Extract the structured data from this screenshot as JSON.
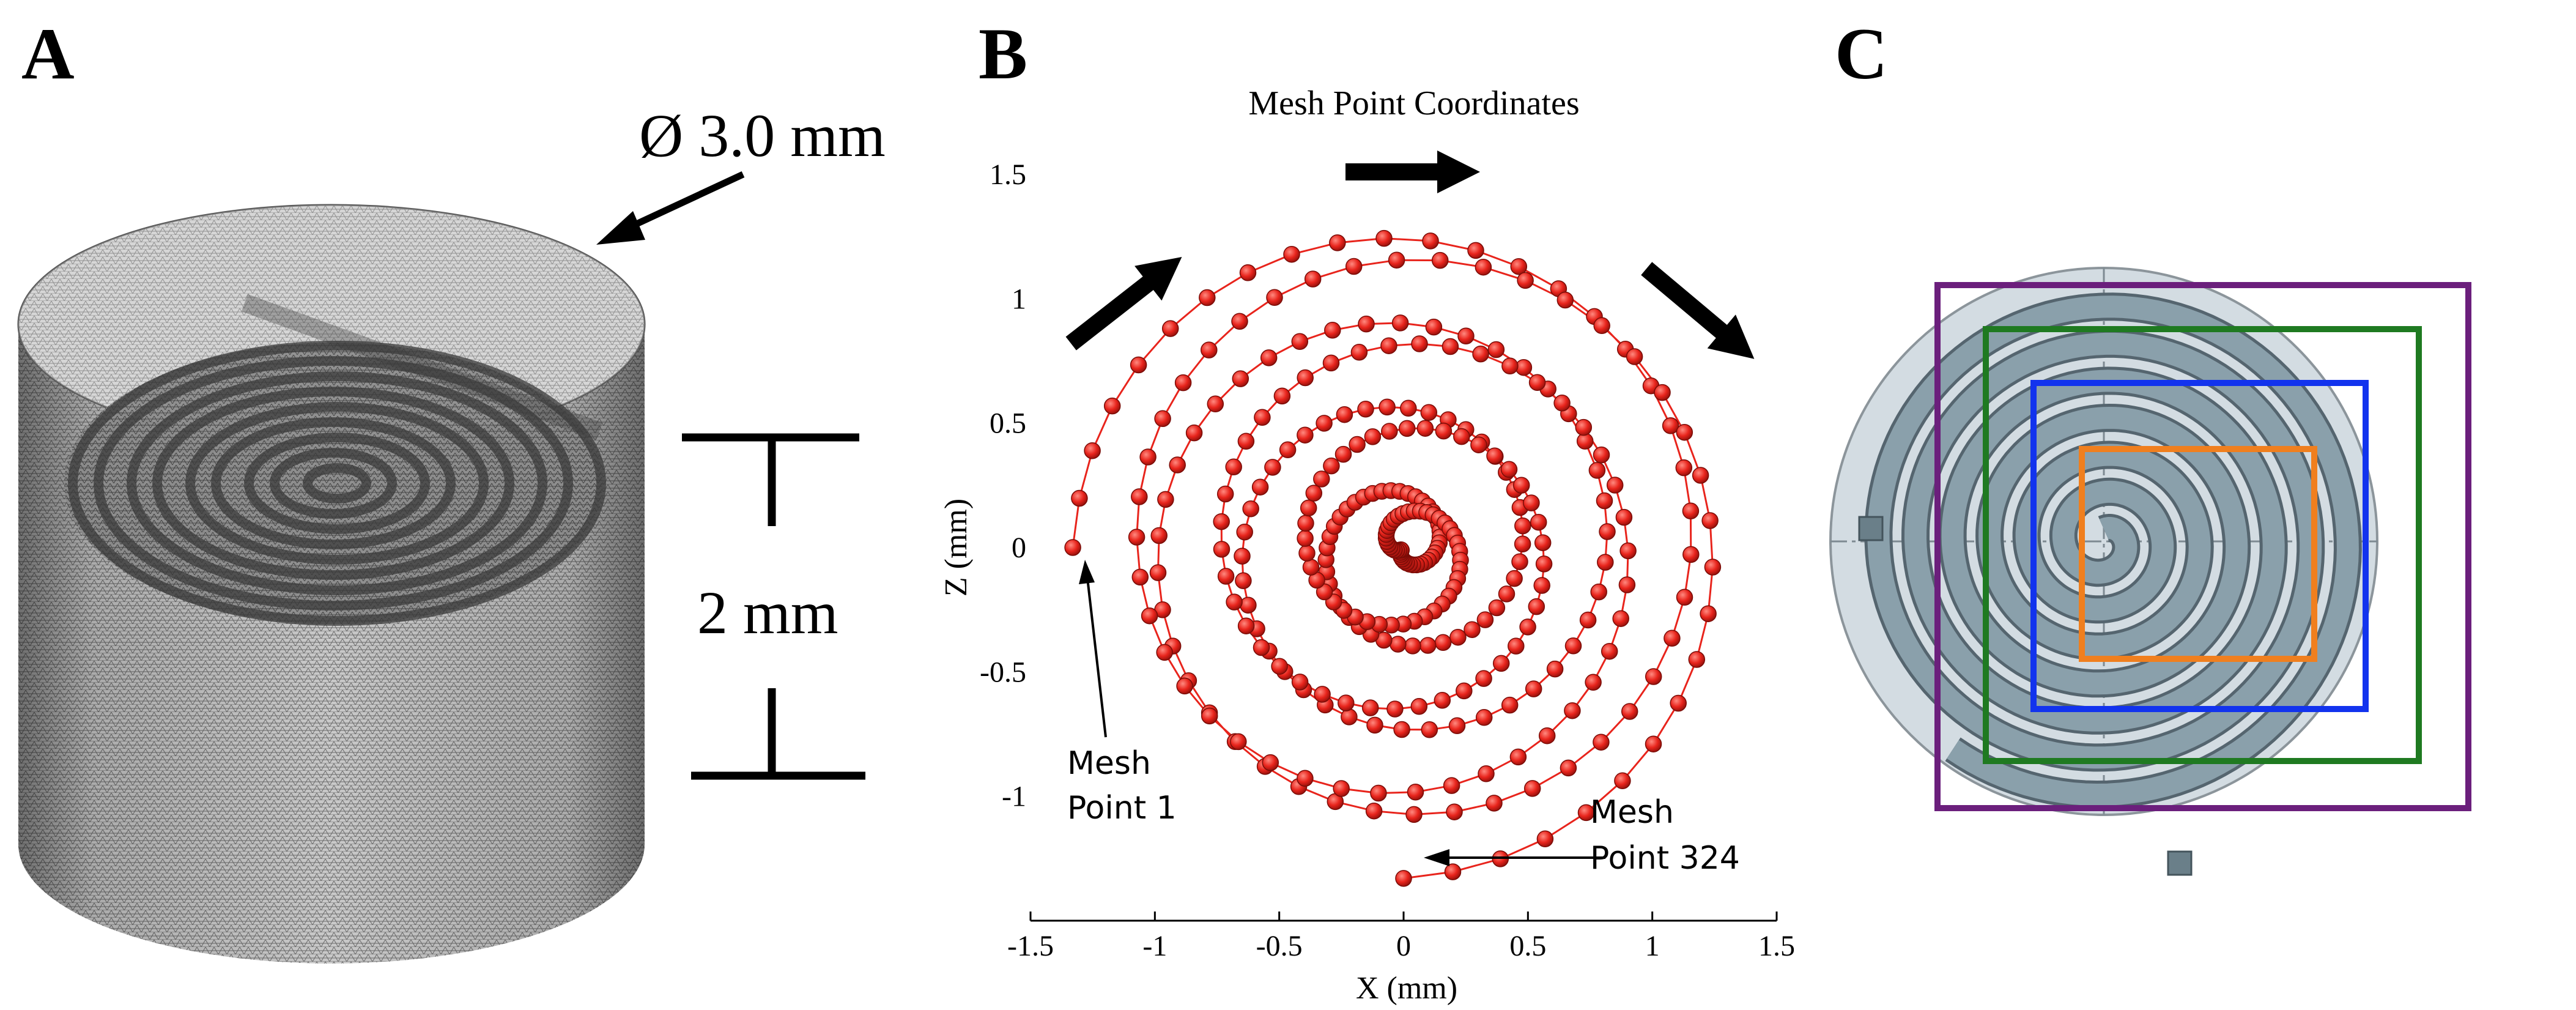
{
  "panels": {
    "a": {
      "label": "A",
      "diameter_label": "Ø 3.0 mm",
      "height_label": "2 mm"
    },
    "b": {
      "label": "B",
      "title": "Mesh Point Coordinates",
      "start_annotation": [
        "Mesh",
        "Point 1"
      ],
      "end_annotation": [
        "Mesh",
        "Point 324"
      ]
    },
    "c": {
      "label": "C"
    }
  },
  "chart_data": {
    "type": "scatter",
    "title": "Mesh Point Coordinates",
    "xlabel": "X (mm)",
    "ylabel": "Z (mm)",
    "xlim": [
      -1.5,
      1.5
    ],
    "ylim": [
      -1.5,
      1.5
    ],
    "xticks": [
      -1.5,
      -1,
      -0.5,
      0,
      0.5,
      1,
      1.5
    ],
    "yticks": [
      1.5,
      1,
      0.5,
      0,
      -0.5,
      -1
    ],
    "xtick_labels": [
      "-1.5",
      "-1",
      "-0.5",
      "0",
      "0.5",
      "1",
      "1.5"
    ],
    "ytick_labels": [
      "1.5",
      "1",
      "0.5",
      "0",
      "-0.5",
      "-1"
    ],
    "spiral": {
      "points": 324,
      "start": [
        -1.33,
        0.0
      ],
      "end": [
        0.0,
        -1.33
      ],
      "center": [
        0.0,
        0.0
      ],
      "outer_radius_mm": 1.33,
      "turns": 7.75,
      "marker_color": "#e8241c"
    }
  },
  "colors": {
    "ink": "#000000",
    "marker": "#e8241c",
    "disk": "#d3dce2",
    "coil": "#7c919c",
    "coil_dark": "#55656f",
    "box_purple": "#6b1f7c",
    "box_green": "#1f7a21",
    "box_blue": "#1233ee",
    "box_orange": "#f07f1e"
  }
}
